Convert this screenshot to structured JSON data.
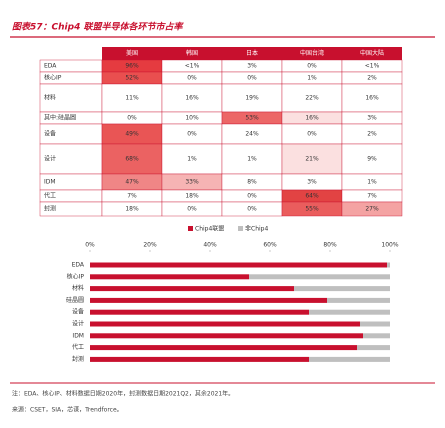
{
  "title": "图表57：Chip4 联盟半导体各环节市占率",
  "table": {
    "header": [
      "美国",
      "韩国",
      "日本",
      "中国台湾",
      "中国大陆"
    ],
    "rows": [
      [
        "EDA",
        "96%",
        "<1%",
        "3%",
        "0%",
        "<1%"
      ],
      [
        "核心IP",
        "52%",
        "0%",
        "0%",
        "1%",
        "2%"
      ],
      [
        "材料",
        "11%",
        "16%",
        "19%",
        "22%",
        "16%"
      ],
      [
        "其中:硅晶圆",
        "0%",
        "10%",
        "53%",
        "16%",
        "3%"
      ],
      [
        "设备",
        "49%",
        "0%",
        "24%",
        "0%",
        "2%"
      ],
      [
        "设计",
        "68%",
        "1%",
        "1%",
        "21%",
        "9%"
      ],
      [
        "IDM",
        "47%",
        "33%",
        "8%",
        "3%",
        "1%"
      ],
      [
        "代工",
        "7%",
        "18%",
        "0%",
        "64%",
        "7%"
      ],
      [
        "封测",
        "18%",
        "0%",
        "0%",
        "55%",
        "27%"
      ]
    ]
  },
  "chart_data": {
    "type": "stacked-barh",
    "categories": [
      "EDA",
      "核心IP",
      "材料",
      "硅晶圆",
      "设备",
      "设计",
      "IDM",
      "代工",
      "封测"
    ],
    "series": [
      {
        "name": "Chip4联盟",
        "color": "#c8102e",
        "values": [
          99,
          53,
          68,
          79,
          73,
          90,
          91,
          89,
          73
        ]
      },
      {
        "name": "非Chip4",
        "color": "#bfbfbf",
        "values": [
          1,
          47,
          32,
          21,
          27,
          10,
          9,
          11,
          27
        ]
      }
    ],
    "xlim": [
      0,
      100
    ],
    "xticks": [
      {
        "value": 0,
        "label": "0%"
      },
      {
        "value": 20,
        "label": "20%"
      },
      {
        "value": 40,
        "label": "40%"
      },
      {
        "value": 60,
        "label": "60%"
      },
      {
        "value": 80,
        "label": "80%"
      },
      {
        "value": 100,
        "label": "100%"
      }
    ],
    "legend": "top"
  },
  "notes": [
    "注：EDA、核心IP、材料数据日期2020年，封测数据日期2021Q2，其余2021年。",
    "来源：CSET，SIA，芯谋，Trendforce。"
  ]
}
